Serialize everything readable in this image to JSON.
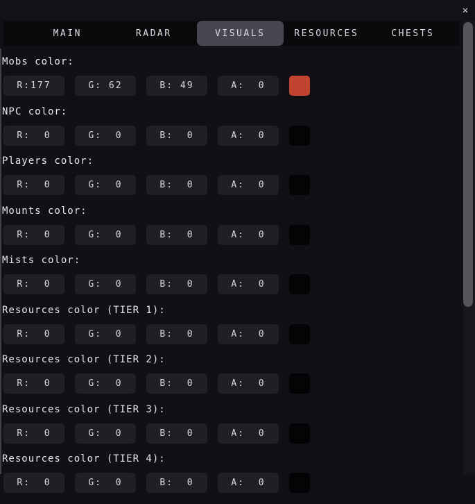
{
  "window": {
    "close_label": "✕"
  },
  "tabbar": {
    "tabs": [
      {
        "label": "MAIN",
        "selected": false
      },
      {
        "label": "RADAR",
        "selected": false
      },
      {
        "label": "VISUALS",
        "selected": true
      },
      {
        "label": "RESOURCES",
        "selected": false
      },
      {
        "label": "CHESTS",
        "selected": false
      }
    ]
  },
  "colors": {
    "selected_tab_bg": "#4a4651",
    "mobs_swatch": "#c2432f",
    "empty_swatch": "#040305"
  },
  "sections": [
    {
      "label": "Mobs color:",
      "swatch": "#c2432f",
      "fields": [
        {
          "name": "r",
          "text": "R:177",
          "value": 177
        },
        {
          "name": "g",
          "text": "G: 62",
          "value": 62
        },
        {
          "name": "b",
          "text": "B: 49",
          "value": 49
        },
        {
          "name": "a",
          "text": "A:  0",
          "value": 0
        }
      ]
    },
    {
      "label": "NPC color:",
      "swatch": "#040305",
      "fields": [
        {
          "name": "r",
          "text": "R:  0",
          "value": 0
        },
        {
          "name": "g",
          "text": "G:  0",
          "value": 0
        },
        {
          "name": "b",
          "text": "B:  0",
          "value": 0
        },
        {
          "name": "a",
          "text": "A:  0",
          "value": 0
        }
      ]
    },
    {
      "label": "Players color:",
      "swatch": "#040305",
      "fields": [
        {
          "name": "r",
          "text": "R:  0",
          "value": 0
        },
        {
          "name": "g",
          "text": "G:  0",
          "value": 0
        },
        {
          "name": "b",
          "text": "B:  0",
          "value": 0
        },
        {
          "name": "a",
          "text": "A:  0",
          "value": 0
        }
      ]
    },
    {
      "label": "Mounts color:",
      "swatch": "#040305",
      "fields": [
        {
          "name": "r",
          "text": "R:  0",
          "value": 0
        },
        {
          "name": "g",
          "text": "G:  0",
          "value": 0
        },
        {
          "name": "b",
          "text": "B:  0",
          "value": 0
        },
        {
          "name": "a",
          "text": "A:  0",
          "value": 0
        }
      ]
    },
    {
      "label": "Mists color:",
      "swatch": "#040305",
      "fields": [
        {
          "name": "r",
          "text": "R:  0",
          "value": 0
        },
        {
          "name": "g",
          "text": "G:  0",
          "value": 0
        },
        {
          "name": "b",
          "text": "B:  0",
          "value": 0
        },
        {
          "name": "a",
          "text": "A:  0",
          "value": 0
        }
      ]
    },
    {
      "label": "Resources color (TIER 1):",
      "swatch": "#040305",
      "fields": [
        {
          "name": "r",
          "text": "R:  0",
          "value": 0
        },
        {
          "name": "g",
          "text": "G:  0",
          "value": 0
        },
        {
          "name": "b",
          "text": "B:  0",
          "value": 0
        },
        {
          "name": "a",
          "text": "A:  0",
          "value": 0
        }
      ]
    },
    {
      "label": "Resources color (TIER 2):",
      "swatch": "#040305",
      "fields": [
        {
          "name": "r",
          "text": "R:  0",
          "value": 0
        },
        {
          "name": "g",
          "text": "G:  0",
          "value": 0
        },
        {
          "name": "b",
          "text": "B:  0",
          "value": 0
        },
        {
          "name": "a",
          "text": "A:  0",
          "value": 0
        }
      ]
    },
    {
      "label": "Resources color (TIER 3):",
      "swatch": "#040305",
      "fields": [
        {
          "name": "r",
          "text": "R:  0",
          "value": 0
        },
        {
          "name": "g",
          "text": "G:  0",
          "value": 0
        },
        {
          "name": "b",
          "text": "B:  0",
          "value": 0
        },
        {
          "name": "a",
          "text": "A:  0",
          "value": 0
        }
      ]
    },
    {
      "label": "Resources color (TIER 4):",
      "swatch": "#040305",
      "fields": [
        {
          "name": "r",
          "text": "R:  0",
          "value": 0
        },
        {
          "name": "g",
          "text": "G:  0",
          "value": 0
        },
        {
          "name": "b",
          "text": "B:  0",
          "value": 0
        },
        {
          "name": "a",
          "text": "A:  0",
          "value": 0
        }
      ]
    }
  ]
}
